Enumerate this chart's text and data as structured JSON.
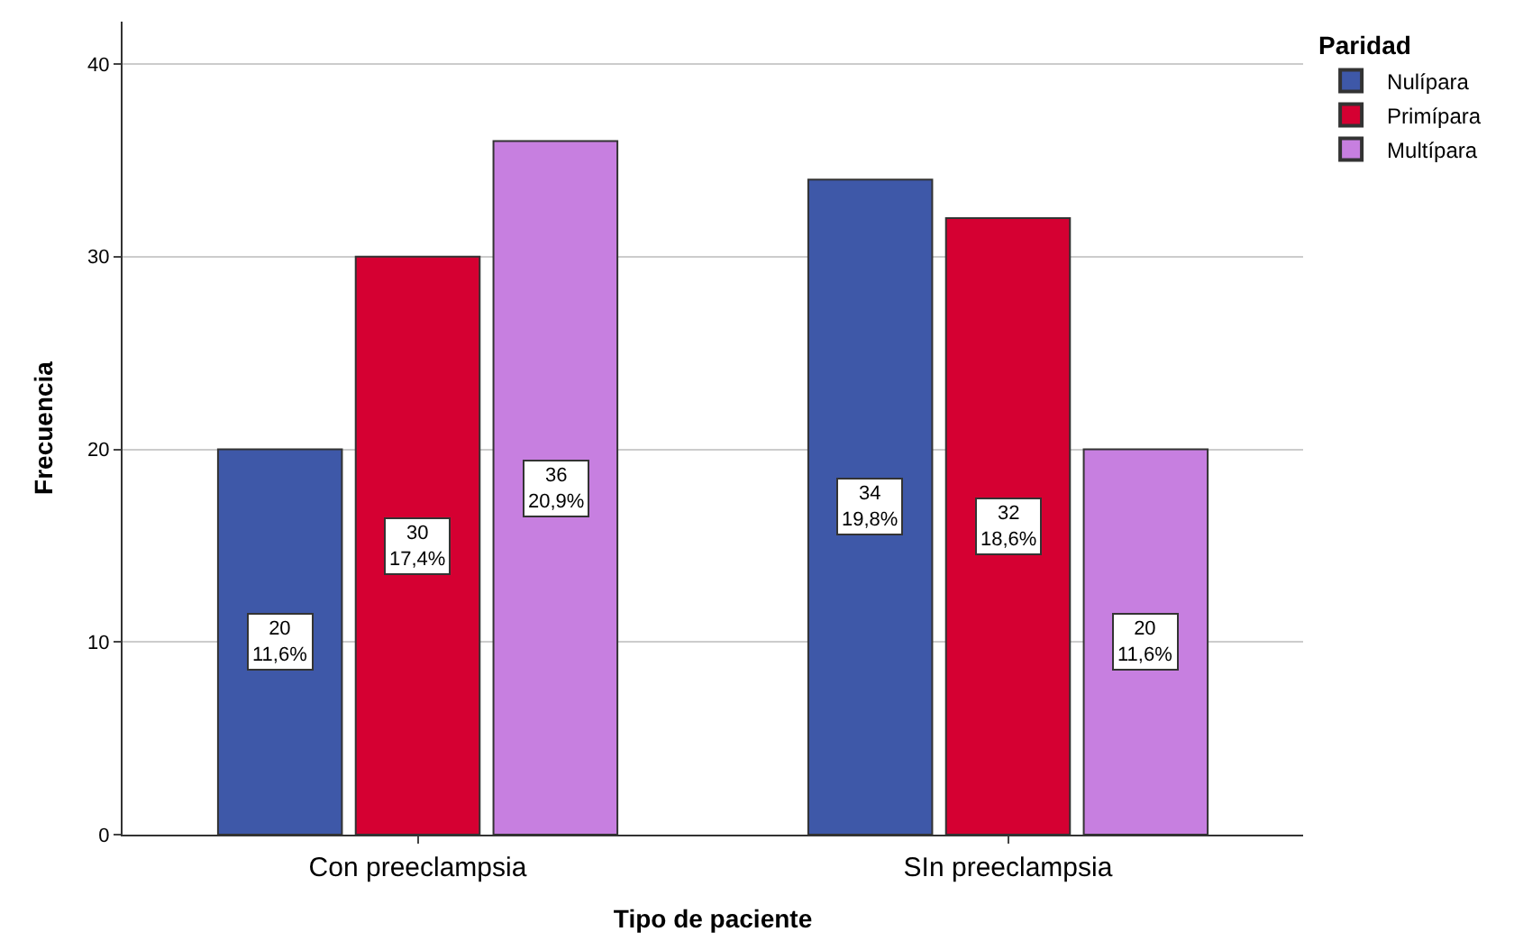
{
  "chart_data": {
    "type": "bar",
    "xlabel": "Tipo de paciente",
    "ylabel": "Frecuencia",
    "legend_title": "Paridad",
    "categories": [
      "Con preeclampsia",
      "SIn preeclampsia"
    ],
    "series": [
      {
        "name": "Nulípara",
        "color": "#3e58a8",
        "values": [
          20,
          34
        ],
        "value_labels": [
          "20\n11,6%",
          "34\n19,8%"
        ]
      },
      {
        "name": "Primípara",
        "color": "#d50032",
        "values": [
          30,
          32
        ],
        "value_labels": [
          "30\n17,4%",
          "32\n18,6%"
        ]
      },
      {
        "name": "Multípara",
        "color": "#c77fe0",
        "values": [
          36,
          20
        ],
        "value_labels": [
          "36\n20,9%",
          "20\n11,6%"
        ]
      }
    ],
    "ylim": [
      0,
      42.2
    ],
    "yticks": [
      0,
      10,
      20,
      30,
      40
    ],
    "grid": "y",
    "legend": "top right"
  }
}
